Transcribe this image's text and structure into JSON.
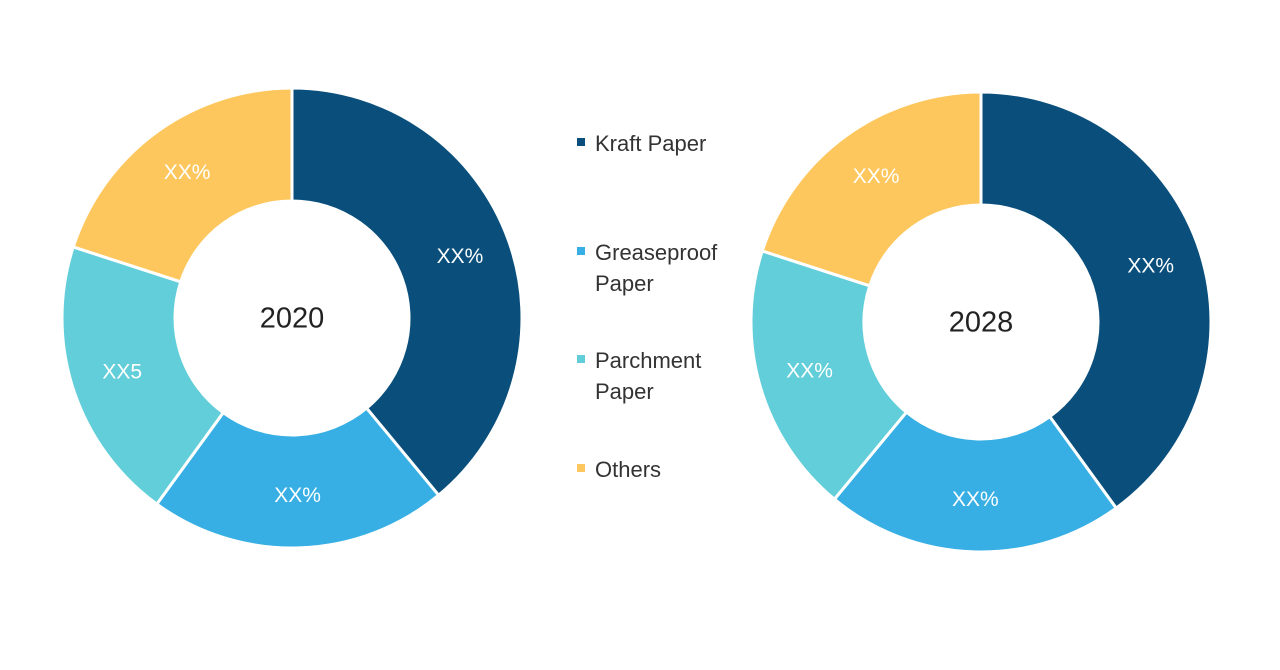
{
  "chart_data": [
    {
      "type": "pie",
      "center_label": "2020",
      "categories": [
        "Kraft Paper",
        "Greaseproof Paper",
        "Parchment Paper",
        "Others"
      ],
      "values": [
        39,
        21,
        20,
        20
      ],
      "slice_labels": [
        "XX%",
        "XX%",
        "XX5",
        "XX%"
      ]
    },
    {
      "type": "pie",
      "center_label": "2028",
      "categories": [
        "Kraft Paper",
        "Greaseproof Paper",
        "Parchment Paper",
        "Others"
      ],
      "values": [
        40,
        21,
        19,
        20
      ],
      "slice_labels": [
        "XX%",
        "XX%",
        "XX%",
        "XX%"
      ]
    }
  ],
  "legend": [
    {
      "label": "Kraft Paper",
      "color": "#0a4f7c"
    },
    {
      "label": "Greaseproof\nPaper",
      "color": "#37afe4"
    },
    {
      "label": "Parchment\nPaper",
      "color": "#62ced9"
    },
    {
      "label": "Others",
      "color": "#fdc75d"
    }
  ]
}
